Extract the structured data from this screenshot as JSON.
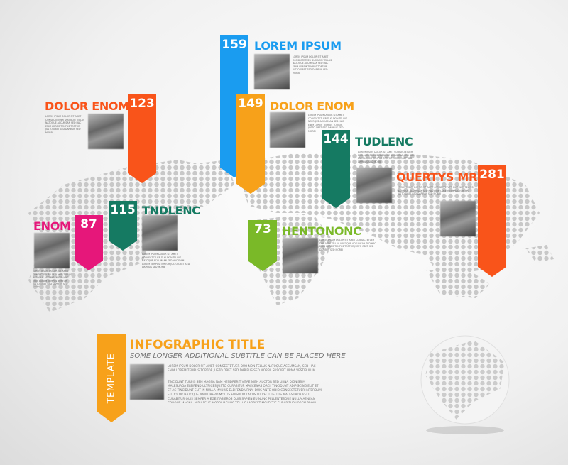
{
  "colors": {
    "blue": "#1a9cf0",
    "red_orange": "#f9541a",
    "orange": "#f7a11a",
    "teal": "#157a62",
    "magenta": "#e6177a",
    "green": "#7ab928",
    "map_dots": "#c8c8c8"
  },
  "markers": [
    {
      "value": "159",
      "title": "LOREM IPSUM",
      "color": "#1a9cf0"
    },
    {
      "value": "123",
      "title": "DOLOR ENOM",
      "color": "#f9541a"
    },
    {
      "value": "149",
      "title": "DOLOR ENOM",
      "color": "#f7a11a"
    },
    {
      "value": "144",
      "title": "TUDLENC",
      "color": "#157a62"
    },
    {
      "value": "281",
      "title": "QUERTYS MR",
      "color": "#f9541a"
    },
    {
      "value": "115",
      "title": "TNDLENC",
      "color": "#157a62"
    },
    {
      "value": "87",
      "title": "ENOM",
      "color": "#e6177a"
    },
    {
      "value": "73",
      "title": "HENTONONC",
      "color": "#7ab928"
    }
  ],
  "filler": "LOREM IPSUM DOLOR SIT AMET CONSECTETUER DUO NON TELLUS NATOQUE ACCUMSAN SED HAC ENIM LOREM TEMPUS TORTOR JUSTO OBET SED DAPIBUS SED MORBI",
  "info": {
    "tag": "TEMPLATE",
    "title": "INFOGRAPHIC TITLE",
    "subtitle": "SOME LONGER ADDITIONAL SUBTITLE CAN BE PLACED HERE",
    "para1": "LOREM IPSUM DOLOR SIT AMET CONSECTETUER DUO NON TELLUS NATOQUE ACCUMSAN, SED HAC ENIM LOREM TEMPUS TORTOR JUSTO OBET SED DAPIBUS SED MORBI. SUSCIPIT URNA VESTIBULUM",
    "para2": "TINCIDUNT TURPIS SEM MAGNA NAM HENDRERIT VITAE NIBH AUCTOR SED URNA DIGNISSIM MALESUADA ELEIFEND ULTRICES JUSTO CURABITUR MAECENAS ORCI. TINCIDUNT ADIPISCING ELIT ET ET AC TINCIDUNT ELIT IN NULLA MAURIS ELEIFEND URNA. DUIS ANTE ODIO CONSECTETUER INTERDUM EU DOLOR NATOQUE NAM LIBERO MOLLIS EUISMOD LACUS UT VELIT TELLUS MALESUADA VELIT CURABITUR QUIS SEMPER A EGESTAS EROS QUIS SAPIEN EU NUNC PELLENTESQUE NULLA AENEAN CONQUE MAGNA, NIBH FELIS MORBI IACULIS TELLUS LAOREET MOLESTIE CURABITUR LOREM PROIN. ELIT CONSEQUAT CURSUS LOREM FUSCE IN DIAM TORTOR EU JUSTO PRAESENT LACUS EU ELIT SEMPER TEMPOR ARCU FACILISIS TINCIDUNT NULLA VIAE DOLOR SEMPER PRETIUM SEM PELLENTESQUE SUSCIPIT SEM AMET LACINIA SAGITTIS ELIT NAM"
  }
}
